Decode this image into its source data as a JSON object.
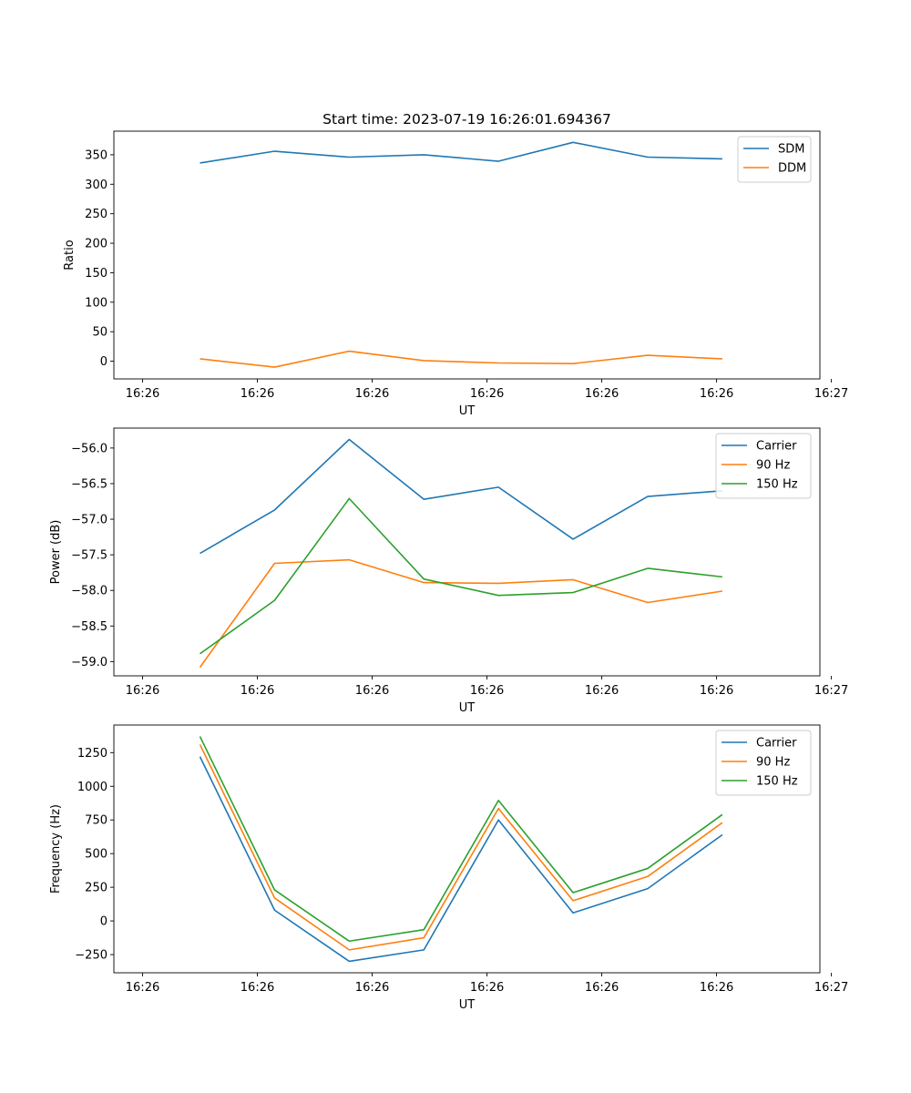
{
  "chart_data": [
    {
      "type": "line",
      "title": "Start time: 2023-07-19 16:26:01.694367",
      "xlabel": "UT",
      "ylabel": "Ratio",
      "xlim": [
        -0.5,
        11.8
      ],
      "ylim": [
        -30,
        390
      ],
      "x_ticks": [
        0,
        2,
        4,
        6,
        8,
        10,
        12
      ],
      "x_tick_labels": [
        "16:26",
        "16:26",
        "16:26",
        "16:26",
        "16:26",
        "16:26",
        "16:27"
      ],
      "y_ticks": [
        0,
        50,
        100,
        150,
        200,
        250,
        300,
        350
      ],
      "y_tick_labels": [
        "0",
        "50",
        "100",
        "150",
        "200",
        "250",
        "300",
        "350"
      ],
      "x": [
        1,
        2.3,
        3.6,
        4.9,
        6.2,
        7.5,
        8.8,
        10.1
      ],
      "legend": "top-right",
      "series": [
        {
          "name": "SDM",
          "color": "#1f77b4",
          "values": [
            336,
            356,
            346,
            350,
            339,
            371,
            346,
            343
          ]
        },
        {
          "name": "DDM",
          "color": "#ff7f0e",
          "values": [
            4,
            -10,
            17,
            1,
            -3,
            -4,
            10,
            4
          ]
        }
      ]
    },
    {
      "type": "line",
      "title": "",
      "xlabel": "UT",
      "ylabel": "Power (dB)",
      "xlim": [
        -0.5,
        11.8
      ],
      "ylim": [
        -59.2,
        -55.72
      ],
      "x_ticks": [
        0,
        2,
        4,
        6,
        8,
        10,
        12
      ],
      "x_tick_labels": [
        "16:26",
        "16:26",
        "16:26",
        "16:26",
        "16:26",
        "16:26",
        "16:27"
      ],
      "y_ticks": [
        -59,
        -58.5,
        -58,
        -57.5,
        -57,
        -56.5,
        -56
      ],
      "y_tick_labels": [
        "−59.0",
        "−58.5",
        "−58.0",
        "−57.5",
        "−57.0",
        "−56.5",
        "−56.0"
      ],
      "x": [
        1,
        2.3,
        3.6,
        4.9,
        6.2,
        7.5,
        8.8,
        10.1
      ],
      "legend": "top-right",
      "series": [
        {
          "name": "Carrier",
          "color": "#1f77b4",
          "values": [
            -57.48,
            -56.87,
            -55.88,
            -56.72,
            -56.55,
            -57.28,
            -56.68,
            -56.6
          ]
        },
        {
          "name": "90 Hz",
          "color": "#ff7f0e",
          "values": [
            -59.08,
            -57.62,
            -57.57,
            -57.89,
            -57.9,
            -57.85,
            -58.17,
            -58.01
          ]
        },
        {
          "name": "150 Hz",
          "color": "#2ca02c",
          "values": [
            -58.89,
            -58.14,
            -56.71,
            -57.84,
            -58.07,
            -58.03,
            -57.69,
            -57.81
          ]
        }
      ]
    },
    {
      "type": "line",
      "title": "",
      "xlabel": "UT",
      "ylabel": "Frequency (Hz)",
      "xlim": [
        -0.5,
        11.8
      ],
      "ylim": [
        -385,
        1455
      ],
      "x_ticks": [
        0,
        2,
        4,
        6,
        8,
        10,
        12
      ],
      "x_tick_labels": [
        "16:26",
        "16:26",
        "16:26",
        "16:26",
        "16:26",
        "16:26",
        "16:27"
      ],
      "y_ticks": [
        -250,
        0,
        250,
        500,
        750,
        1000,
        1250
      ],
      "y_tick_labels": [
        "−250",
        "0",
        "250",
        "500",
        "750",
        "1000",
        "1250"
      ],
      "x": [
        1,
        2.3,
        3.6,
        4.9,
        6.2,
        7.5,
        8.8,
        10.1
      ],
      "legend": "top-right",
      "series": [
        {
          "name": "Carrier",
          "color": "#1f77b4",
          "values": [
            1220,
            80,
            -300,
            -215,
            750,
            60,
            240,
            640
          ]
        },
        {
          "name": "90 Hz",
          "color": "#ff7f0e",
          "values": [
            1310,
            170,
            -215,
            -125,
            835,
            150,
            330,
            730
          ]
        },
        {
          "name": "150 Hz",
          "color": "#2ca02c",
          "values": [
            1370,
            230,
            -150,
            -65,
            895,
            210,
            390,
            790
          ]
        }
      ]
    }
  ]
}
